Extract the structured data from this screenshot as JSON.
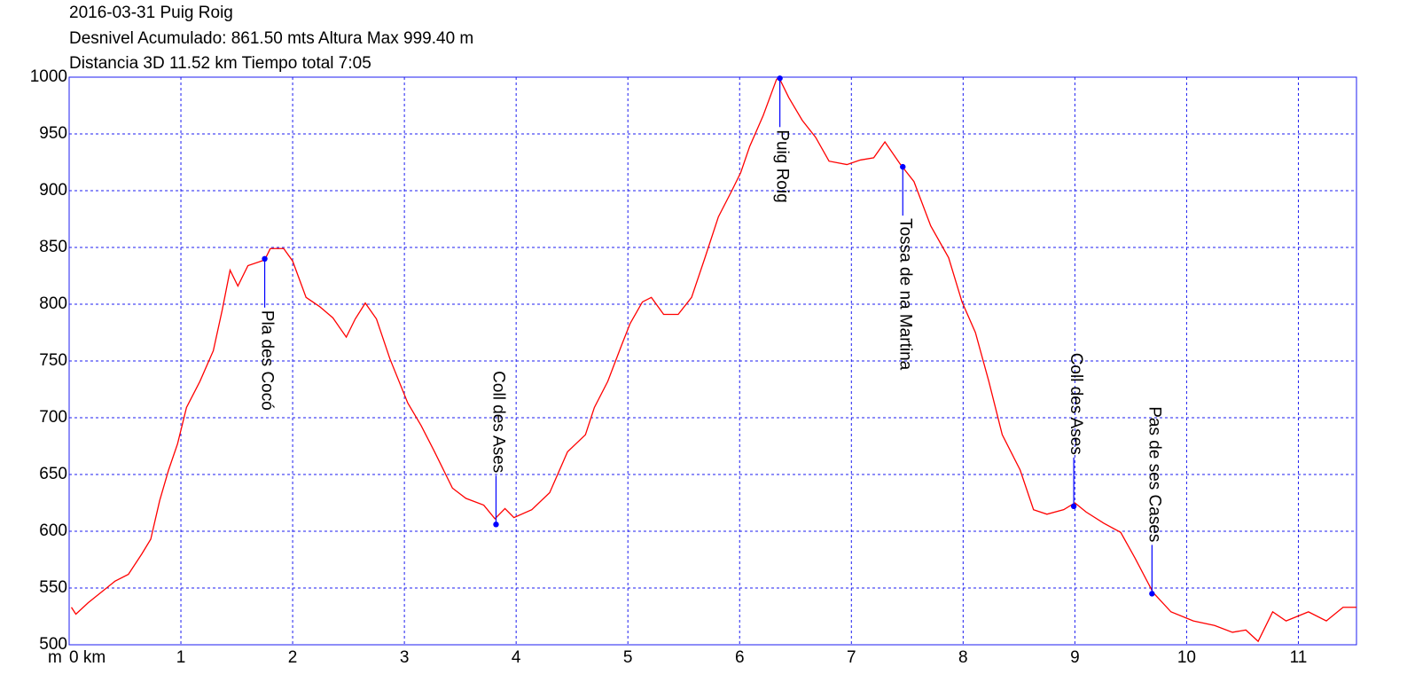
{
  "chart_data": {
    "type": "line",
    "title_lines": [
      "2016-03-31 Puig Roig",
      "Desnivel Acumulado: 861.50 mts  Altura Max 999.40 m",
      "Distancia 3D 11.52 km  Tiempo total 7:05"
    ],
    "y_label": "m",
    "xlim": [
      0,
      11.52
    ],
    "ylim": [
      500,
      1000
    ],
    "xticks": [
      {
        "value": 0,
        "label": "0 km"
      },
      1,
      2,
      3,
      4,
      5,
      6,
      7,
      8,
      9,
      10,
      11
    ],
    "yticks": [
      500,
      550,
      600,
      650,
      700,
      750,
      800,
      850,
      900,
      950,
      1000
    ],
    "grid": true,
    "series": [
      {
        "color": "#ff0000",
        "x": [
          0.02,
          0.06,
          0.17,
          0.41,
          0.53,
          0.65,
          0.73,
          0.81,
          0.89,
          0.97,
          1.05,
          1.17,
          1.29,
          1.37,
          1.44,
          1.51,
          1.6,
          1.75,
          1.8,
          1.92,
          2.0,
          2.12,
          2.24,
          2.36,
          2.48,
          2.56,
          2.65,
          2.75,
          2.87,
          3.03,
          3.15,
          3.27,
          3.43,
          3.55,
          3.71,
          3.81,
          3.9,
          3.98,
          4.14,
          4.3,
          4.46,
          4.62,
          4.7,
          4.82,
          4.94,
          5.02,
          5.13,
          5.21,
          5.32,
          5.45,
          5.57,
          5.69,
          5.81,
          5.93,
          6.01,
          6.09,
          6.21,
          6.33,
          6.35,
          6.44,
          6.56,
          6.68,
          6.8,
          6.96,
          7.08,
          7.2,
          7.3,
          7.44,
          7.56,
          7.71,
          7.87,
          7.99,
          8.11,
          8.23,
          8.35,
          8.51,
          8.63,
          8.75,
          8.9,
          9.0,
          9.1,
          9.26,
          9.41,
          9.54,
          9.7,
          9.86,
          10.06,
          10.25,
          10.41,
          10.53,
          10.64,
          10.77,
          10.89,
          11.09,
          11.25,
          11.4,
          11.52
        ],
        "values": [
          533,
          527,
          537,
          556,
          562,
          580,
          593,
          627,
          654,
          677,
          709,
          732,
          759,
          795,
          830,
          816,
          834,
          839,
          849,
          849,
          838,
          806,
          798,
          788,
          771,
          787,
          801,
          787,
          752,
          713,
          693,
          670,
          638,
          629,
          623,
          611,
          620,
          612,
          619,
          634,
          670,
          685,
          709,
          732,
          763,
          783,
          802,
          806,
          791,
          791,
          806,
          841,
          877,
          900,
          916,
          939,
          966,
          998,
          1000,
          982,
          962,
          947,
          926,
          923,
          927,
          929,
          943,
          923,
          908,
          869,
          841,
          802,
          775,
          732,
          685,
          654,
          619,
          615,
          619,
          625,
          617,
          607,
          599,
          576,
          546,
          529,
          521,
          517,
          511,
          513,
          503,
          529,
          521,
          529,
          521,
          533,
          533
        ]
      }
    ],
    "marker_color": "#0000ff",
    "annotations": [
      {
        "x": 1.75,
        "y": 840,
        "label": "Pla des Cocó",
        "position": "below"
      },
      {
        "x": 3.82,
        "y": 606,
        "label": "Coll des Ases",
        "position": "above"
      },
      {
        "x": 6.36,
        "y": 999,
        "label": "Puig Roig",
        "position": "below"
      },
      {
        "x": 7.46,
        "y": 921,
        "label": "Tossa de na Martina",
        "position": "below"
      },
      {
        "x": 8.99,
        "y": 622,
        "label": "Coll des Ases",
        "position": "above"
      },
      {
        "x": 9.69,
        "y": 545,
        "label": "Pas de ses Cases",
        "position": "above"
      }
    ]
  }
}
